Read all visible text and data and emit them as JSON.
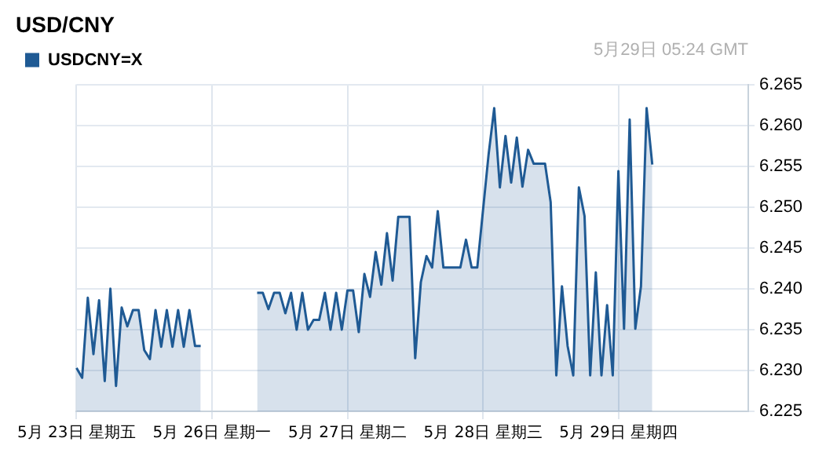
{
  "chart_data": {
    "type": "area",
    "title": "USD/CNY",
    "annotations": [
      "5月29日 05:24 GMT"
    ],
    "categories": [
      "5月 23日 星期五",
      null,
      null,
      null,
      null,
      null,
      null,
      null,
      null,
      null,
      null,
      null,
      null,
      null,
      null,
      null,
      null,
      null,
      null,
      null,
      null,
      null,
      null,
      null,
      "5月 26日 星期一",
      null,
      null,
      null,
      null,
      null,
      null,
      null,
      null,
      null,
      null,
      null,
      null,
      null,
      null,
      null,
      null,
      null,
      null,
      null,
      null,
      null,
      null,
      null,
      "5月 27日 星期二",
      null,
      null,
      null,
      null,
      null,
      null,
      null,
      null,
      null,
      null,
      null,
      null,
      null,
      null,
      null,
      null,
      null,
      null,
      null,
      null,
      null,
      null,
      null,
      "5月 28日 星期三",
      null,
      null,
      null,
      null,
      null,
      null,
      null,
      null,
      null,
      null,
      null,
      null,
      null,
      null,
      null,
      null,
      null,
      null,
      null,
      null,
      null,
      null,
      null,
      "5月 29日 星期四",
      null,
      null,
      null,
      null,
      null,
      null,
      null,
      null,
      null,
      null,
      null,
      null,
      null,
      null,
      null,
      null,
      null,
      null,
      null,
      null,
      null,
      null,
      null
    ],
    "series": [
      {
        "name": "USDCNY=X",
        "color": "#1f5a94",
        "values": [
          6.2303,
          6.2291,
          6.2389,
          6.232,
          6.2386,
          6.2287,
          6.24,
          6.2281,
          6.2377,
          6.2354,
          6.2374,
          6.2374,
          6.2325,
          6.2314,
          6.2374,
          6.2329,
          6.2374,
          6.2329,
          6.2374,
          6.2329,
          6.2374,
          6.233,
          6.233,
          null,
          null,
          null,
          null,
          null,
          null,
          null,
          null,
          null,
          6.2395,
          6.2395,
          6.2375,
          6.2395,
          6.2395,
          6.237,
          6.2395,
          6.235,
          6.2395,
          6.235,
          6.2362,
          6.2362,
          6.2395,
          6.235,
          6.2395,
          6.235,
          6.2398,
          6.2398,
          6.2347,
          6.2418,
          6.239,
          6.2445,
          6.2405,
          6.2468,
          6.241,
          6.2488,
          6.2488,
          6.2488,
          6.2315,
          6.2408,
          6.244,
          6.2426,
          6.2495,
          6.2426,
          6.2426,
          6.2426,
          6.2426,
          6.246,
          6.2426,
          6.2426,
          6.2495,
          6.2564,
          6.2621,
          6.2524,
          6.2587,
          6.253,
          6.2585,
          6.2525,
          6.257,
          6.2553,
          6.2553,
          6.2553,
          6.2506,
          6.2294,
          6.2403,
          6.233,
          6.2294,
          6.2524,
          6.2489,
          6.2294,
          6.242,
          6.2294,
          6.238,
          6.2294,
          6.2544,
          6.2351,
          6.2607,
          6.2351,
          6.2403,
          6.2621,
          6.2552,
          null,
          null,
          null,
          null,
          null,
          null,
          null,
          null,
          null,
          null,
          null,
          null,
          null,
          null,
          null,
          null,
          null
        ]
      }
    ],
    "ylim": [
      6.225,
      6.265
    ],
    "yticks": [
      {
        "value": 6.225,
        "label": "6.225"
      },
      {
        "value": 6.23,
        "label": "6.230"
      },
      {
        "value": 6.235,
        "label": "6.235"
      },
      {
        "value": 6.24,
        "label": "6.240"
      },
      {
        "value": 6.245,
        "label": "6.245"
      },
      {
        "value": 6.25,
        "label": "6.250"
      },
      {
        "value": 6.255,
        "label": "6.255"
      },
      {
        "value": 6.26,
        "label": "6.260"
      },
      {
        "value": 6.265,
        "label": "6.265"
      }
    ],
    "grid": true,
    "legend": "top left",
    "marker": "none",
    "line_style": "solid"
  }
}
